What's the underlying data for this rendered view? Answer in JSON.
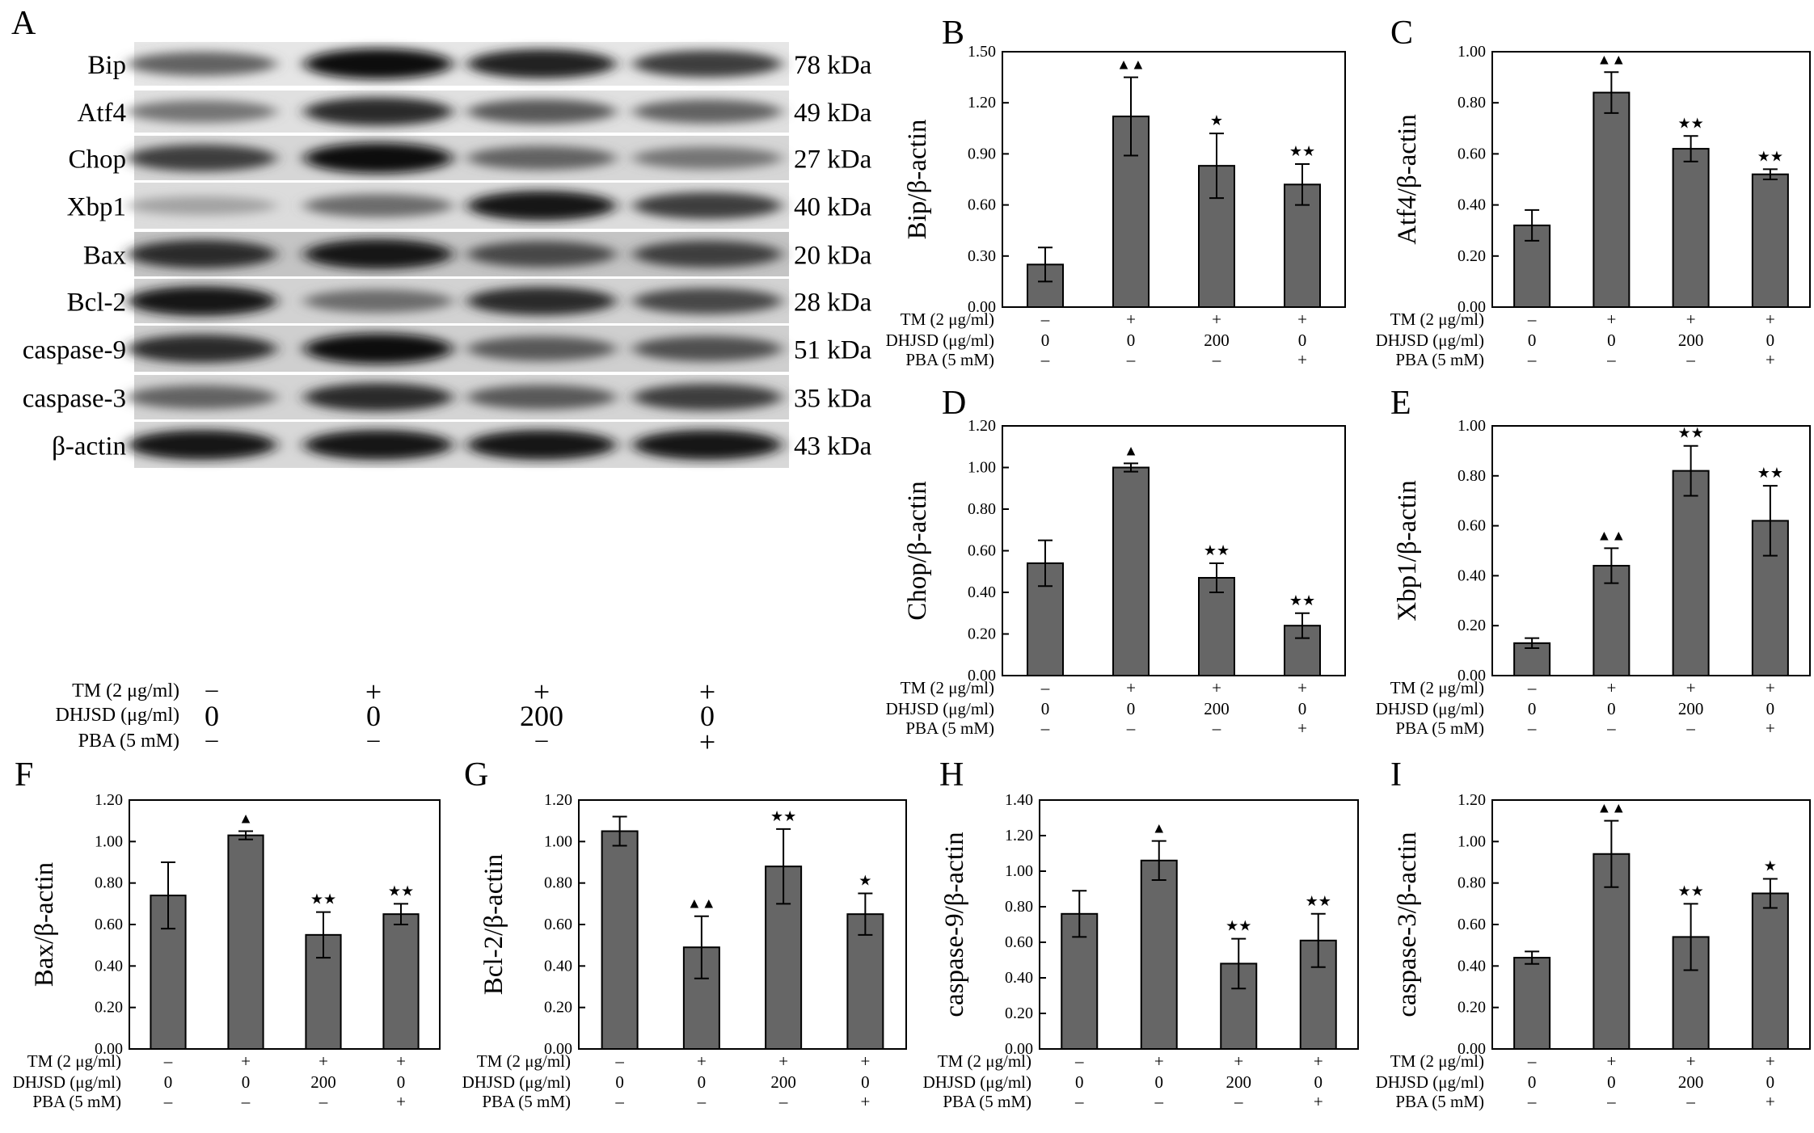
{
  "panel_a": {
    "letter": "A",
    "bands": [
      {
        "label": "Bip",
        "kda": "78 kDa",
        "intensity": [
          0.55,
          1.0,
          0.9,
          0.75
        ]
      },
      {
        "label": "Atf4",
        "kda": "49 kDa",
        "intensity": [
          0.45,
          0.85,
          0.6,
          0.55
        ]
      },
      {
        "label": "Chop",
        "kda": "27 kDa",
        "intensity": [
          0.75,
          1.0,
          0.55,
          0.45
        ]
      },
      {
        "label": "Xbp1",
        "kda": "40 kDa",
        "intensity": [
          0.2,
          0.5,
          0.95,
          0.75
        ]
      },
      {
        "label": "Bax",
        "kda": "20 kDa",
        "intensity": [
          0.85,
          0.95,
          0.7,
          0.75
        ]
      },
      {
        "label": "Bcl-2",
        "kda": "28 kDa",
        "intensity": [
          0.95,
          0.5,
          0.85,
          0.7
        ]
      },
      {
        "label": "caspase-9",
        "kda": "51 kDa",
        "intensity": [
          0.85,
          1.0,
          0.6,
          0.65
        ]
      },
      {
        "label": "caspase-3",
        "kda": "35 kDa",
        "intensity": [
          0.55,
          0.85,
          0.6,
          0.75
        ]
      },
      {
        "label": "β-actin",
        "kda": "43 kDa",
        "intensity": [
          0.95,
          0.95,
          0.95,
          0.95
        ]
      }
    ],
    "conditions": [
      {
        "label": "TM (2 μg/ml)",
        "values": [
          "–",
          "+",
          "+",
          "+"
        ]
      },
      {
        "label": "DHJSD (μg/ml)",
        "values": [
          "0",
          "0",
          "200",
          "0"
        ]
      },
      {
        "label": "PBA (5 mM)",
        "values": [
          "–",
          "–",
          "–",
          "+"
        ]
      }
    ]
  },
  "conditions": [
    {
      "label": "TM (2 μg/ml)",
      "values": [
        "–",
        "+",
        "+",
        "+"
      ]
    },
    {
      "label": "DHJSD (μg/ml)",
      "values": [
        "0",
        "0",
        "200",
        "0"
      ]
    },
    {
      "label": "PBA (5 mM)",
      "values": [
        "–",
        "–",
        "–",
        "+"
      ]
    }
  ],
  "colors": {
    "bar": "#666666",
    "axis": "#000000",
    "marker": "#000000"
  },
  "chart_data": [
    {
      "panel": "B",
      "type": "bar",
      "ylabel": "Bip/β-actin",
      "ylim": [
        0,
        1.5
      ],
      "ticks": [
        "0.00",
        "0.30",
        "0.60",
        "0.90",
        "1.20",
        "1.50"
      ],
      "values": [
        0.25,
        1.12,
        0.83,
        0.72
      ],
      "errors": [
        0.1,
        0.23,
        0.19,
        0.12
      ],
      "marks": [
        "",
        "▲▲",
        "★",
        "★★"
      ]
    },
    {
      "panel": "C",
      "type": "bar",
      "ylabel": "Atf4/β-actin",
      "ylim": [
        0,
        1.0
      ],
      "ticks": [
        "0.00",
        "0.20",
        "0.40",
        "0.60",
        "0.80",
        "1.00"
      ],
      "values": [
        0.32,
        0.84,
        0.62,
        0.52
      ],
      "errors": [
        0.06,
        0.08,
        0.05,
        0.02
      ],
      "marks": [
        "",
        "▲▲",
        "★★",
        "★★"
      ]
    },
    {
      "panel": "D",
      "type": "bar",
      "ylabel": "Chop/β-actin",
      "ylim": [
        0,
        1.2
      ],
      "ticks": [
        "0.00",
        "0.20",
        "0.40",
        "0.60",
        "0.80",
        "1.00",
        "1.20"
      ],
      "values": [
        0.54,
        1.0,
        0.47,
        0.24
      ],
      "errors": [
        0.11,
        0.02,
        0.07,
        0.06
      ],
      "marks": [
        "",
        "▲",
        "★★",
        "★★"
      ]
    },
    {
      "panel": "E",
      "type": "bar",
      "ylabel": "Xbp1/β-actin",
      "ylim": [
        0,
        1.0
      ],
      "ticks": [
        "0.00",
        "0.20",
        "0.40",
        "0.60",
        "0.80",
        "1.00"
      ],
      "values": [
        0.13,
        0.44,
        0.82,
        0.62
      ],
      "errors": [
        0.02,
        0.07,
        0.1,
        0.14
      ],
      "marks": [
        "",
        "▲▲",
        "★★",
        "★★"
      ]
    },
    {
      "panel": "F",
      "type": "bar",
      "ylabel": "Bax/β-actin",
      "ylim": [
        0,
        1.2
      ],
      "ticks": [
        "0.00",
        "0.20",
        "0.40",
        "0.60",
        "0.80",
        "1.00",
        "1.20"
      ],
      "values": [
        0.74,
        1.03,
        0.55,
        0.65
      ],
      "errors": [
        0.16,
        0.02,
        0.11,
        0.05
      ],
      "marks": [
        "",
        "▲",
        "★★",
        "★★"
      ]
    },
    {
      "panel": "G",
      "type": "bar",
      "ylabel": "Bcl-2/β-actin",
      "ylim": [
        0,
        1.2
      ],
      "ticks": [
        "0.00",
        "0.20",
        "0.40",
        "0.60",
        "0.80",
        "1.00",
        "1.20"
      ],
      "values": [
        1.05,
        0.49,
        0.88,
        0.65
      ],
      "errors": [
        0.07,
        0.15,
        0.18,
        0.1
      ],
      "marks": [
        "",
        "▲▲",
        "★★",
        "★"
      ]
    },
    {
      "panel": "H",
      "type": "bar",
      "ylabel": "caspase-9/β-actin",
      "ylim": [
        0,
        1.4
      ],
      "ticks": [
        "0.00",
        "0.20",
        "0.40",
        "0.60",
        "0.80",
        "1.00",
        "1.20",
        "1.40"
      ],
      "values": [
        0.76,
        1.06,
        0.48,
        0.61
      ],
      "errors": [
        0.13,
        0.11,
        0.14,
        0.15
      ],
      "marks": [
        "",
        "▲",
        "★★",
        "★★"
      ]
    },
    {
      "panel": "I",
      "type": "bar",
      "ylabel": "caspase-3/β-actin",
      "ylim": [
        0,
        1.2
      ],
      "ticks": [
        "0.00",
        "0.20",
        "0.40",
        "0.60",
        "0.80",
        "1.00",
        "1.20"
      ],
      "values": [
        0.44,
        0.94,
        0.54,
        0.75
      ],
      "errors": [
        0.03,
        0.16,
        0.16,
        0.07
      ],
      "marks": [
        "",
        "▲▲",
        "★★",
        "★"
      ]
    }
  ]
}
